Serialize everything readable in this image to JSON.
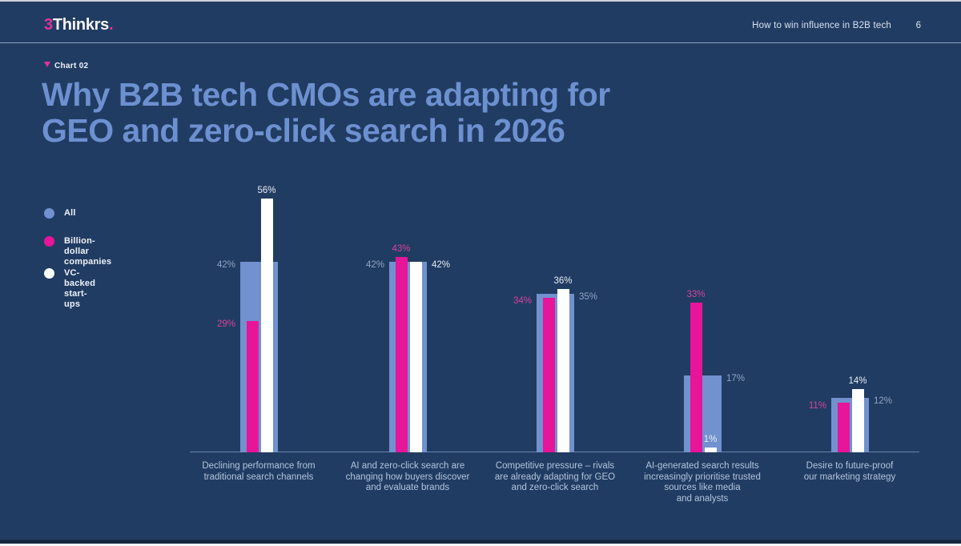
{
  "header": {
    "logo_prefix": "3",
    "logo_main": "Thinkrs",
    "logo_suffix": ".",
    "doc_title": "How to win influence in B2B tech",
    "page_number": "6"
  },
  "kicker": "Chart 02",
  "title": "Why B2B tech CMOs are adapting for\nGEO and zero-click search in 2026",
  "colors": {
    "background": "#213C62",
    "title": "#6C90D0",
    "accent_pink": "#E6159A",
    "bar_blue": "#7191CF",
    "bar_white": "#FFFFFF"
  },
  "legend": [
    {
      "id": "all",
      "label": "All",
      "color": "#7191CF"
    },
    {
      "id": "billion",
      "label": "Billion-dollar\ncompanies",
      "color": "#E6159A"
    },
    {
      "id": "vc",
      "label": "VC-backed\nstart-ups",
      "color": "#FFFFFF"
    }
  ],
  "chart_data": {
    "type": "bar",
    "title": "Why B2B tech CMOs are adapting for GEO and zero-click search in 2026",
    "value_suffix": "%",
    "ylim": [
      0,
      60
    ],
    "grid": false,
    "legend_position": "left",
    "categories": [
      "Declining performance from\ntraditional search channels",
      "AI and zero-click search are\nchanging how buyers discover\nand evaluate brands",
      "Competitive pressure – rivals\nare already adapting for GEO\nand zero-click search",
      "AI-generated search results\nincreasingly prioritise trusted\nsources like media\nand analysts",
      "Desire to future-proof\nour marketing strategy"
    ],
    "series": [
      {
        "id": "all",
        "name": "All",
        "color": "#7191CF",
        "label_color": "#8FA3C6",
        "values": [
          42,
          42,
          35,
          17,
          12
        ]
      },
      {
        "id": "billion",
        "name": "Billion-dollar companies",
        "color": "#E6159A",
        "label_color": "#D6429C",
        "values": [
          29,
          43,
          34,
          33,
          11
        ]
      },
      {
        "id": "vc",
        "name": "VC-backed start-ups",
        "color": "#FFFFFF",
        "label_color": "#E9EDF4",
        "values": [
          56,
          42,
          36,
          1,
          14
        ]
      }
    ],
    "label_layout": [
      {
        "all": "left",
        "billion": "left",
        "vc": "above"
      },
      {
        "all": "left",
        "billion": "above",
        "vc": "right"
      },
      {
        "all": "right",
        "billion": "left",
        "vc": "above"
      },
      {
        "all": "right",
        "billion": "above",
        "vc": "above"
      },
      {
        "all": "right",
        "billion": "left",
        "vc": "above"
      }
    ]
  }
}
